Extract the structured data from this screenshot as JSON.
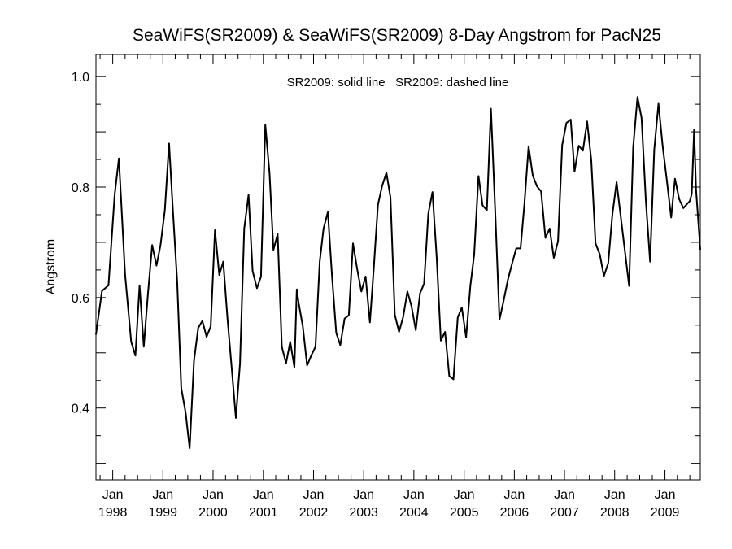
{
  "chart_data": {
    "type": "line",
    "title": "SeaWiFS(SR2009) & SeaWiFS(SR2009) 8-Day Angstrom for PacN25",
    "annotation": "SR2009: solid line   SR2009: dashed line",
    "xlabel": "",
    "ylabel": "Angstrom",
    "xlim": [
      "1997-09-01",
      "2009-09-15"
    ],
    "ylim": [
      0.27,
      1.04
    ],
    "yticks": [
      0.4,
      0.6,
      0.8,
      1.0
    ],
    "ytick_labels": [
      "0.4",
      "0.6",
      "0.8",
      "1.0"
    ],
    "xticks": [
      {
        "date": "1998-01-01",
        "month": "Jan",
        "year": "1998"
      },
      {
        "date": "1999-01-01",
        "month": "Jan",
        "year": "1999"
      },
      {
        "date": "2000-01-01",
        "month": "Jan",
        "year": "2000"
      },
      {
        "date": "2001-01-01",
        "month": "Jan",
        "year": "2001"
      },
      {
        "date": "2002-01-01",
        "month": "Jan",
        "year": "2002"
      },
      {
        "date": "2003-01-01",
        "month": "Jan",
        "year": "2003"
      },
      {
        "date": "2004-01-01",
        "month": "Jan",
        "year": "2004"
      },
      {
        "date": "2005-01-01",
        "month": "Jan",
        "year": "2005"
      },
      {
        "date": "2006-01-01",
        "month": "Jan",
        "year": "2006"
      },
      {
        "date": "2007-01-01",
        "month": "Jan",
        "year": "2007"
      },
      {
        "date": "2008-01-01",
        "month": "Jan",
        "year": "2008"
      },
      {
        "date": "2009-01-01",
        "month": "Jan",
        "year": "2009"
      }
    ],
    "grid": false,
    "series": [
      {
        "style": "solid",
        "color": "#000000",
        "x": [
          "1997-09-01",
          "1997-10-15",
          "1997-12-01",
          "1998-01-15",
          "1998-02-15",
          "1998-04-01",
          "1998-05-15",
          "1998-06-15",
          "1998-07-15",
          "1998-08-15",
          "1998-09-15",
          "1998-10-15",
          "1998-11-15",
          "1998-12-15",
          "1999-01-15",
          "1999-02-15",
          "1999-03-15",
          "1999-04-15",
          "1999-05-15",
          "1999-06-15",
          "1999-07-15",
          "1999-08-15",
          "1999-09-15",
          "1999-10-15",
          "1999-11-15",
          "1999-12-15",
          "2000-01-15",
          "2000-02-15",
          "2000-03-15",
          "2000-04-15",
          "2000-05-15",
          "2000-06-15",
          "2000-07-15",
          "2000-08-15",
          "2000-09-15",
          "2000-10-15",
          "2000-11-15",
          "2000-12-15",
          "2001-01-15",
          "2001-02-15",
          "2001-03-15",
          "2001-04-15",
          "2001-05-15",
          "2001-06-15",
          "2001-07-15",
          "2001-08-15",
          "2001-09-01",
          "2001-09-15",
          "2001-10-15",
          "2001-11-15",
          "2001-12-15",
          "2002-01-15",
          "2002-02-15",
          "2002-03-15",
          "2002-04-15",
          "2002-05-15",
          "2002-06-15",
          "2002-07-15",
          "2002-08-15",
          "2002-09-15",
          "2002-10-15",
          "2002-11-15",
          "2002-12-15",
          "2003-01-15",
          "2003-02-15",
          "2003-03-15",
          "2003-04-15",
          "2003-05-15",
          "2003-06-15",
          "2003-07-15",
          "2003-08-15",
          "2003-09-15",
          "2003-10-15",
          "2003-11-15",
          "2003-12-15",
          "2004-01-15",
          "2004-02-15",
          "2004-03-15",
          "2004-04-15",
          "2004-05-15",
          "2004-06-15",
          "2004-07-15",
          "2004-08-15",
          "2004-09-15",
          "2004-10-15",
          "2004-11-15",
          "2004-12-15",
          "2005-01-15",
          "2005-02-15",
          "2005-03-15",
          "2005-04-15",
          "2005-05-15",
          "2005-06-15",
          "2005-07-15",
          "2005-08-15",
          "2005-09-15",
          "2005-10-15",
          "2005-11-15",
          "2005-12-15",
          "2006-01-15",
          "2006-02-15",
          "2006-03-15",
          "2006-04-15",
          "2006-05-15",
          "2006-06-15",
          "2006-07-15",
          "2006-08-15",
          "2006-09-15",
          "2006-10-15",
          "2006-11-15",
          "2006-12-15",
          "2007-01-15",
          "2007-02-15",
          "2007-03-15",
          "2007-04-15",
          "2007-05-15",
          "2007-06-15",
          "2007-07-15",
          "2007-08-15",
          "2007-09-15",
          "2007-10-15",
          "2007-11-15",
          "2007-12-15",
          "2008-01-15",
          "2008-04-15",
          "2008-05-15",
          "2008-06-15",
          "2008-07-15",
          "2008-08-15",
          "2008-09-15",
          "2008-10-15",
          "2008-11-15",
          "2008-12-15",
          "2009-01-15",
          "2009-02-15",
          "2009-03-15",
          "2009-04-15",
          "2009-05-15",
          "2009-07-01",
          "2009-07-15",
          "2009-08-01",
          "2009-08-15",
          "2009-09-15"
        ],
        "y": [
          0.533,
          0.612,
          0.622,
          0.786,
          0.852,
          0.642,
          0.52,
          0.495,
          0.622,
          0.511,
          0.608,
          0.695,
          0.658,
          0.695,
          0.758,
          0.879,
          0.758,
          0.628,
          0.436,
          0.392,
          0.327,
          0.485,
          0.545,
          0.558,
          0.529,
          0.548,
          0.722,
          0.641,
          0.665,
          0.562,
          0.474,
          0.382,
          0.481,
          0.725,
          0.786,
          0.648,
          0.617,
          0.638,
          0.913,
          0.825,
          0.686,
          0.715,
          0.511,
          0.481,
          0.52,
          0.474,
          0.615,
          0.59,
          0.548,
          0.477,
          0.495,
          0.511,
          0.665,
          0.725,
          0.755,
          0.641,
          0.536,
          0.514,
          0.562,
          0.568,
          0.698,
          0.651,
          0.611,
          0.638,
          0.555,
          0.652,
          0.768,
          0.802,
          0.826,
          0.781,
          0.569,
          0.538,
          0.565,
          0.611,
          0.584,
          0.541,
          0.608,
          0.625,
          0.752,
          0.791,
          0.673,
          0.522,
          0.538,
          0.458,
          0.452,
          0.564,
          0.582,
          0.528,
          0.621,
          0.678,
          0.82,
          0.767,
          0.758,
          0.942,
          0.755,
          0.56,
          0.594,
          0.632,
          0.661,
          0.689,
          0.689,
          0.768,
          0.874,
          0.821,
          0.801,
          0.792,
          0.708,
          0.725,
          0.672,
          0.702,
          0.876,
          0.916,
          0.922,
          0.828,
          0.875,
          0.866,
          0.919,
          0.848,
          0.698,
          0.678,
          0.639,
          0.662,
          0.75,
          0.809,
          0.621,
          0.872,
          0.963,
          0.925,
          0.775,
          0.665,
          0.868,
          0.951,
          0.875,
          0.812,
          0.745,
          0.815,
          0.778,
          0.762,
          0.775,
          0.788,
          0.904,
          0.795,
          0.687
        ]
      }
    ]
  }
}
